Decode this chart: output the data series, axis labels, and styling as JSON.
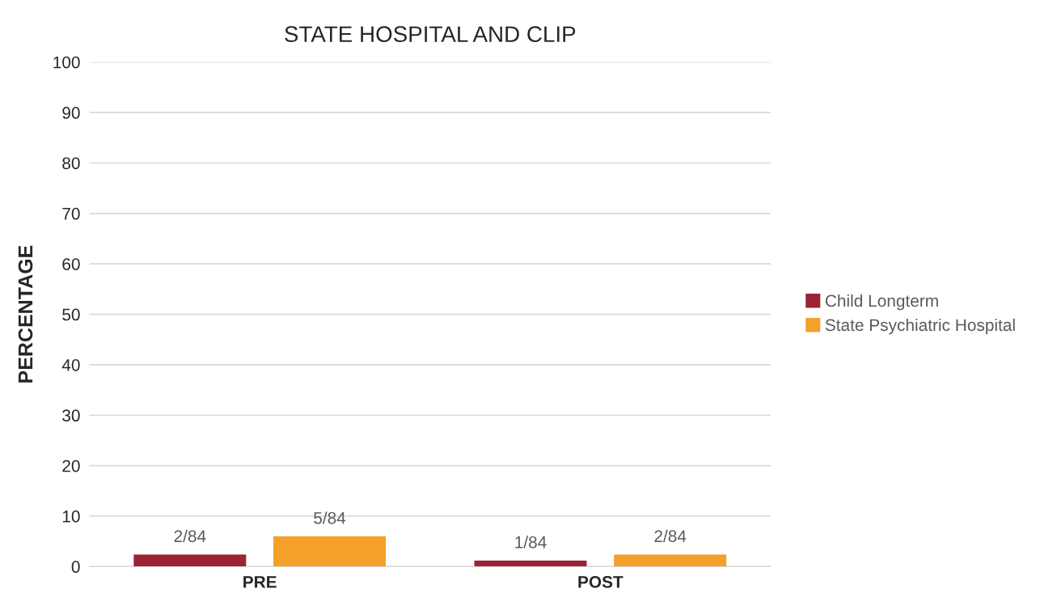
{
  "chart_data": {
    "type": "bar",
    "title": "STATE HOSPITAL AND CLIP",
    "ylabel": "PERCENTAGE",
    "categories": [
      "PRE",
      "POST"
    ],
    "series": [
      {
        "name": "Child Longterm",
        "color": "#9b2335",
        "values": [
          2.4,
          1.2
        ],
        "value_labels": [
          "2/84",
          "1/84"
        ]
      },
      {
        "name": "State Psychiatric Hospital",
        "color": "#f5a02a",
        "values": [
          6.0,
          2.4
        ],
        "value_labels": [
          "5/84",
          "2/84"
        ]
      }
    ],
    "ylim": [
      0,
      100
    ],
    "yticks": [
      0,
      10,
      20,
      30,
      40,
      50,
      60,
      70,
      80,
      90,
      100
    ],
    "grid": "y",
    "legend": "right"
  }
}
